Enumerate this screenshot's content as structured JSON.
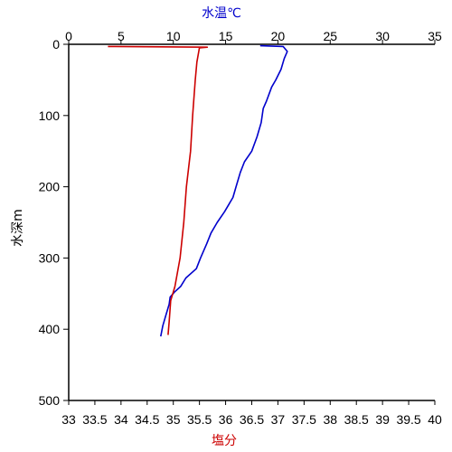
{
  "chart_data": {
    "type": "line",
    "top_axis": {
      "label": "水温℃",
      "label_color": "#0000cc",
      "range": [
        0,
        35
      ],
      "ticks": [
        0,
        5,
        10,
        15,
        20,
        25,
        30,
        35
      ]
    },
    "bottom_axis": {
      "label": "塩分",
      "label_color": "#cc0000",
      "range": [
        33,
        40
      ],
      "ticks": [
        33,
        33.5,
        34,
        34.5,
        35,
        35.5,
        36,
        36.5,
        37,
        37.5,
        38,
        38.5,
        39,
        39.5,
        40
      ]
    },
    "left_axis": {
      "label": "水深m",
      "range": [
        0,
        500
      ],
      "inverted": true,
      "ticks": [
        0,
        100,
        200,
        300,
        400,
        500
      ]
    },
    "series": [
      {
        "axis": "top",
        "color": "#0000cc",
        "points": [
          {
            "depth": 2,
            "value": 18.3
          },
          {
            "depth": 3,
            "value": 20.5
          },
          {
            "depth": 10,
            "value": 20.9
          },
          {
            "depth": 20,
            "value": 20.6
          },
          {
            "depth": 35,
            "value": 20.3
          },
          {
            "depth": 50,
            "value": 19.8
          },
          {
            "depth": 60,
            "value": 19.4
          },
          {
            "depth": 80,
            "value": 18.9
          },
          {
            "depth": 90,
            "value": 18.6
          },
          {
            "depth": 110,
            "value": 18.4
          },
          {
            "depth": 130,
            "value": 18.0
          },
          {
            "depth": 150,
            "value": 17.5
          },
          {
            "depth": 165,
            "value": 16.8
          },
          {
            "depth": 180,
            "value": 16.4
          },
          {
            "depth": 200,
            "value": 16.0
          },
          {
            "depth": 215,
            "value": 15.7
          },
          {
            "depth": 235,
            "value": 14.9
          },
          {
            "depth": 250,
            "value": 14.2
          },
          {
            "depth": 265,
            "value": 13.6
          },
          {
            "depth": 280,
            "value": 13.2
          },
          {
            "depth": 300,
            "value": 12.6
          },
          {
            "depth": 315,
            "value": 12.2
          },
          {
            "depth": 328,
            "value": 11.2
          },
          {
            "depth": 340,
            "value": 10.7
          },
          {
            "depth": 348,
            "value": 10.1
          },
          {
            "depth": 355,
            "value": 9.7
          },
          {
            "depth": 365,
            "value": 9.6
          },
          {
            "depth": 380,
            "value": 9.3
          },
          {
            "depth": 395,
            "value": 9.0
          },
          {
            "depth": 410,
            "value": 8.8
          }
        ]
      },
      {
        "axis": "bottom",
        "color": "#cc0000",
        "points": [
          {
            "depth": 3,
            "value": 33.75
          },
          {
            "depth": 4,
            "value": 35.65
          },
          {
            "depth": 5,
            "value": 35.5
          },
          {
            "depth": 25,
            "value": 35.45
          },
          {
            "depth": 50,
            "value": 35.42
          },
          {
            "depth": 100,
            "value": 35.37
          },
          {
            "depth": 150,
            "value": 35.33
          },
          {
            "depth": 200,
            "value": 35.25
          },
          {
            "depth": 250,
            "value": 35.2
          },
          {
            "depth": 300,
            "value": 35.13
          },
          {
            "depth": 340,
            "value": 35.03
          },
          {
            "depth": 360,
            "value": 34.95
          },
          {
            "depth": 390,
            "value": 34.92
          },
          {
            "depth": 408,
            "value": 34.9
          }
        ]
      }
    ]
  }
}
